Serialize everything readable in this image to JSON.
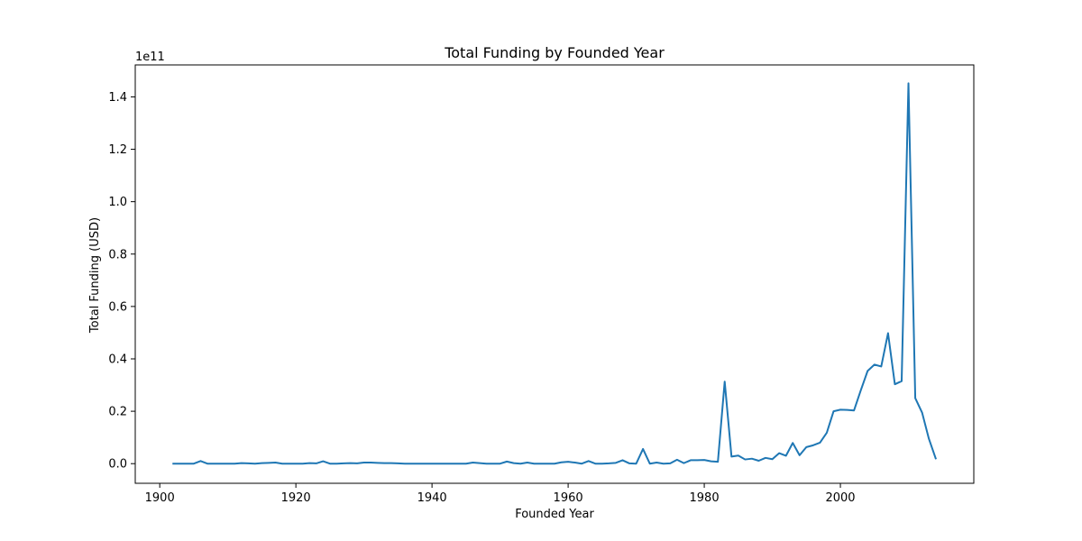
{
  "chart_data": {
    "type": "line",
    "title": "Total Funding by Founded Year",
    "xlabel": "Founded Year",
    "ylabel": "Total Funding (USD)",
    "y_offset_label": "1e11",
    "xlim": [
      1896.4,
      2019.6
    ],
    "ylim": [
      -0.075,
      1.522
    ],
    "y_scale_note": "values in units of 1e11 USD",
    "x_ticks": [
      1900,
      1920,
      1940,
      1960,
      1980,
      2000
    ],
    "x_tick_labels": [
      "1900",
      "1920",
      "1940",
      "1960",
      "1980",
      "2000"
    ],
    "y_ticks": [
      0.0,
      0.2,
      0.4,
      0.6,
      0.8,
      1.0,
      1.2,
      1.4
    ],
    "y_tick_labels": [
      "0.0",
      "0.2",
      "0.4",
      "0.6",
      "0.8",
      "1.0",
      "1.2",
      "1.4"
    ],
    "grid": false,
    "series": [
      {
        "color": "#1f77b4",
        "x": [
          1902,
          1903,
          1904,
          1905,
          1906,
          1907,
          1908,
          1909,
          1910,
          1911,
          1912,
          1913,
          1914,
          1915,
          1916,
          1917,
          1918,
          1919,
          1920,
          1921,
          1922,
          1923,
          1924,
          1925,
          1926,
          1927,
          1928,
          1929,
          1930,
          1931,
          1932,
          1933,
          1934,
          1935,
          1936,
          1937,
          1938,
          1939,
          1940,
          1941,
          1942,
          1943,
          1944,
          1945,
          1946,
          1947,
          1948,
          1949,
          1950,
          1951,
          1952,
          1953,
          1954,
          1955,
          1956,
          1957,
          1958,
          1959,
          1960,
          1961,
          1962,
          1963,
          1964,
          1965,
          1966,
          1967,
          1968,
          1969,
          1970,
          1971,
          1972,
          1973,
          1974,
          1975,
          1976,
          1977,
          1978,
          1979,
          1980,
          1981,
          1982,
          1983,
          1984,
          1985,
          1986,
          1987,
          1988,
          1989,
          1990,
          1991,
          1992,
          1993,
          1994,
          1995,
          1996,
          1997,
          1998,
          1999,
          2000,
          2001,
          2002,
          2003,
          2004,
          2005,
          2006,
          2007,
          2008,
          2009,
          2010,
          2011,
          2012,
          2013,
          2014
        ],
        "y": [
          0.0,
          0.0,
          0.0,
          0.0,
          0.01,
          0.0,
          0.0,
          0.0,
          0.0,
          0.0,
          0.002,
          0.001,
          0.0,
          0.002,
          0.003,
          0.004,
          0.0,
          0.0,
          0.0,
          0.0,
          0.002,
          0.001,
          0.009,
          0.0,
          0.0,
          0.001,
          0.002,
          0.001,
          0.004,
          0.004,
          0.003,
          0.002,
          0.002,
          0.001,
          0.0,
          0.0,
          0.0,
          0.0,
          0.0,
          0.0,
          0.0,
          0.0,
          0.0,
          0.0,
          0.004,
          0.002,
          0.0,
          0.0,
          0.0,
          0.008,
          0.002,
          0.0,
          0.004,
          0.0,
          0.0,
          0.0,
          0.0,
          0.005,
          0.007,
          0.004,
          0.0,
          0.01,
          0.0,
          0.0,
          0.001,
          0.003,
          0.013,
          0.001,
          0.0,
          0.056,
          0.0,
          0.004,
          0.0,
          0.001,
          0.015,
          0.002,
          0.013,
          0.013,
          0.014,
          0.009,
          0.007,
          0.313,
          0.027,
          0.031,
          0.016,
          0.019,
          0.011,
          0.022,
          0.017,
          0.04,
          0.03,
          0.079,
          0.032,
          0.063,
          0.07,
          0.08,
          0.118,
          0.2,
          0.206,
          0.205,
          0.203,
          0.28,
          0.354,
          0.378,
          0.371,
          0.498,
          0.303,
          0.315,
          1.452,
          0.25,
          0.195,
          0.095,
          0.02
        ]
      }
    ]
  }
}
